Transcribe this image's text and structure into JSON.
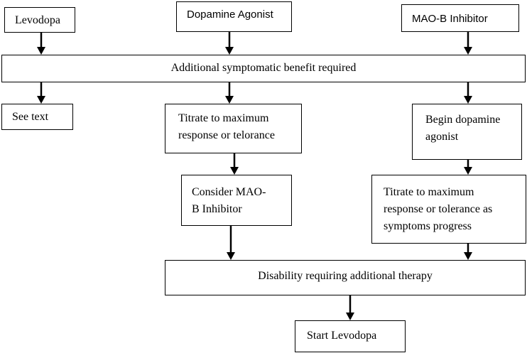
{
  "diagram": {
    "nodes": {
      "levodopa": "Levodopa",
      "dopamine_agonist": "Dopamine Agonist",
      "maob_inhibitor": "MAO-B Inhibitor",
      "additional_benefit": "Additional symptomatic benefit required",
      "see_text": "See text",
      "titrate_max": "Titrate to maximum\nresponse or telorance",
      "begin_agonist": "Begin dopamine\nagonist",
      "consider_maob": "Consider MAO-\nB Inhibitor",
      "titrate_progress": "Titrate to maximum\nresponse or tolerance as\nsymptoms progress",
      "disability": "Disability requiring additional therapy",
      "start_levodopa": "Start Levodopa"
    },
    "edges": [
      {
        "from": "levodopa",
        "to": "additional_benefit"
      },
      {
        "from": "dopamine_agonist",
        "to": "additional_benefit"
      },
      {
        "from": "maob_inhibitor",
        "to": "additional_benefit"
      },
      {
        "from": "additional_benefit",
        "to": "see_text"
      },
      {
        "from": "additional_benefit",
        "to": "titrate_max"
      },
      {
        "from": "additional_benefit",
        "to": "begin_agonist"
      },
      {
        "from": "titrate_max",
        "to": "consider_maob"
      },
      {
        "from": "begin_agonist",
        "to": "titrate_progress"
      },
      {
        "from": "consider_maob",
        "to": "disability"
      },
      {
        "from": "titrate_progress",
        "to": "disability"
      },
      {
        "from": "disability",
        "to": "start_levodopa"
      }
    ]
  }
}
